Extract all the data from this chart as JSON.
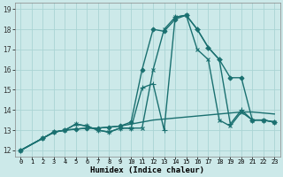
{
  "xlabel": "Humidex (Indice chaleur)",
  "xlim": [
    -0.5,
    23.5
  ],
  "ylim": [
    11.7,
    19.3
  ],
  "yticks": [
    12,
    13,
    14,
    15,
    16,
    17,
    18,
    19
  ],
  "xticks": [
    0,
    1,
    2,
    3,
    4,
    5,
    6,
    7,
    8,
    9,
    10,
    11,
    12,
    13,
    14,
    15,
    16,
    17,
    18,
    19,
    20,
    21,
    22,
    23
  ],
  "xtick_labels": [
    "0",
    "1",
    "2",
    "3",
    "4",
    "5",
    "6",
    "7",
    "8",
    "9",
    "10",
    "11",
    "12",
    "13",
    "14",
    "15",
    "16",
    "17",
    "18",
    "19",
    "20",
    "21",
    "22",
    "23"
  ],
  "background_color": "#cce9e9",
  "grid_color": "#aad4d4",
  "line_color": "#1a7070",
  "series": [
    {
      "x": [
        0,
        2,
        3,
        4,
        5,
        6,
        7,
        8,
        9,
        10,
        11,
        12,
        13,
        14,
        15,
        16,
        17,
        18,
        19,
        20,
        21,
        22,
        23
      ],
      "y": [
        12.0,
        12.6,
        12.9,
        13.0,
        13.05,
        13.1,
        13.1,
        13.15,
        13.2,
        13.3,
        13.4,
        13.5,
        13.55,
        13.6,
        13.65,
        13.7,
        13.75,
        13.8,
        13.85,
        13.9,
        13.9,
        13.85,
        13.8
      ],
      "marker": null,
      "linewidth": 1.0
    },
    {
      "x": [
        0,
        2,
        3,
        4,
        5,
        6,
        7,
        8,
        9,
        10,
        11,
        12,
        13,
        14,
        15,
        16,
        17,
        18,
        19,
        20,
        21,
        22,
        23
      ],
      "y": [
        12.0,
        12.6,
        12.9,
        13.0,
        13.05,
        13.1,
        13.1,
        13.15,
        13.2,
        13.4,
        16.0,
        18.0,
        17.9,
        18.5,
        18.7,
        18.0,
        17.1,
        16.5,
        15.6,
        15.6,
        13.5,
        13.5,
        13.4
      ],
      "marker": "D",
      "markersize": 2.5,
      "linewidth": 1.0
    },
    {
      "x": [
        0,
        2,
        3,
        4,
        5,
        6,
        7,
        8,
        9,
        10,
        11,
        12,
        13,
        14,
        15,
        16,
        17,
        18,
        19,
        20,
        21,
        22,
        23
      ],
      "y": [
        12.0,
        12.6,
        12.9,
        13.0,
        13.3,
        13.2,
        13.0,
        12.9,
        13.1,
        13.1,
        15.1,
        15.3,
        13.0,
        18.6,
        18.7,
        18.0,
        17.1,
        16.5,
        13.3,
        14.0,
        13.5,
        13.5,
        13.4
      ],
      "marker": "+",
      "markersize": 4,
      "linewidth": 1.0
    },
    {
      "x": [
        0,
        2,
        3,
        4,
        5,
        6,
        7,
        8,
        9,
        10,
        11,
        12,
        13,
        14,
        15,
        16,
        17,
        18,
        19,
        20,
        21,
        22,
        23
      ],
      "y": [
        12.0,
        12.6,
        12.9,
        13.0,
        13.3,
        13.2,
        13.0,
        12.9,
        13.1,
        13.1,
        13.1,
        16.0,
        18.0,
        18.6,
        18.7,
        17.0,
        16.5,
        13.5,
        13.2,
        13.9,
        13.5,
        13.5,
        13.4
      ],
      "marker": "x",
      "markersize": 3,
      "linewidth": 1.0
    }
  ]
}
